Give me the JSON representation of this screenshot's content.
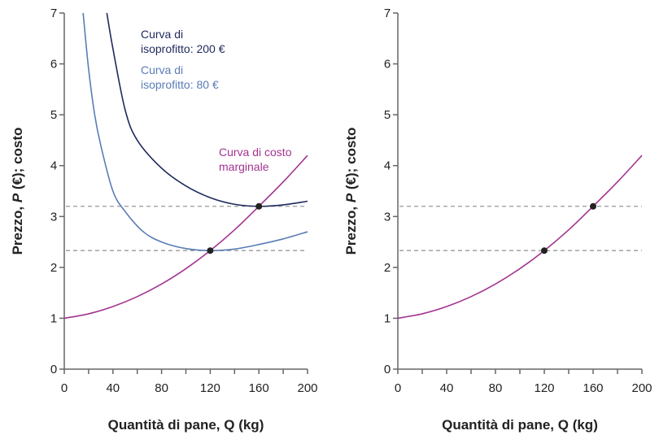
{
  "chart_data": [
    {
      "type": "line",
      "xlabel": "Quantità di pane, Q (kg)",
      "ylabel_parts": {
        "before": "Prezzo, ",
        "italic": "P",
        "after": " (€); costo"
      },
      "xlim": [
        0,
        200
      ],
      "ylim": [
        0,
        7
      ],
      "xticks": [
        "0",
        "40",
        "80",
        "120",
        "160",
        "200"
      ],
      "yticks": [
        "0",
        "1",
        "2",
        "3",
        "4",
        "5",
        "6",
        "7"
      ],
      "grid": false,
      "series": [
        {
          "name_lines": [
            "Curva di",
            "isoprofitto: 200 €"
          ],
          "color": "#1f2a5c",
          "x": [
            35,
            40,
            50,
            60,
            80,
            100,
            120,
            140,
            160,
            180,
            200
          ],
          "y": [
            7,
            6.3,
            5.1,
            4.5,
            3.95,
            3.6,
            3.37,
            3.24,
            3.2,
            3.23,
            3.3
          ]
        },
        {
          "name_lines": [
            "Curva di",
            "isoprofitto: 80 €"
          ],
          "color": "#5a7db5",
          "x": [
            15.5,
            20,
            25,
            30,
            40,
            50,
            65,
            80,
            100,
            120,
            140,
            160,
            180,
            200
          ],
          "y": [
            7,
            5.9,
            5.0,
            4.4,
            3.5,
            3.1,
            2.7,
            2.5,
            2.37,
            2.33,
            2.36,
            2.45,
            2.56,
            2.7
          ]
        },
        {
          "name_lines": [
            "Curva di costo",
            "marginale"
          ],
          "color": "#a3338f",
          "x": [
            0,
            20,
            40,
            60,
            80,
            100,
            120,
            140,
            160,
            180,
            200
          ],
          "y": [
            1,
            1.088,
            1.23,
            1.425,
            1.673,
            1.975,
            2.33,
            2.738,
            3.2,
            3.68,
            4.2
          ]
        }
      ],
      "hlines": [
        3.2,
        2.33
      ],
      "points": [
        {
          "x": 120,
          "y": 2.33
        },
        {
          "x": 160,
          "y": 3.2
        }
      ]
    },
    {
      "type": "line",
      "xlabel": "Quantità di pane, Q (kg)",
      "ylabel_parts": {
        "before": "Prezzo, ",
        "italic": "P",
        "after": " (€); costo"
      },
      "xlim": [
        0,
        200
      ],
      "ylim": [
        0,
        7
      ],
      "xticks": [
        "0",
        "40",
        "80",
        "120",
        "160",
        "200"
      ],
      "yticks": [
        "0",
        "1",
        "2",
        "3",
        "4",
        "5",
        "6",
        "7"
      ],
      "grid": false,
      "series": [
        {
          "color": "#a3338f",
          "x": [
            0,
            20,
            40,
            60,
            80,
            100,
            120,
            140,
            160,
            180,
            200
          ],
          "y": [
            1,
            1.088,
            1.23,
            1.425,
            1.673,
            1.975,
            2.33,
            2.738,
            3.2,
            3.68,
            4.2
          ]
        }
      ],
      "hlines": [
        3.2,
        2.33
      ],
      "points": [
        {
          "x": 120,
          "y": 2.33
        },
        {
          "x": 160,
          "y": 3.2
        }
      ]
    }
  ]
}
